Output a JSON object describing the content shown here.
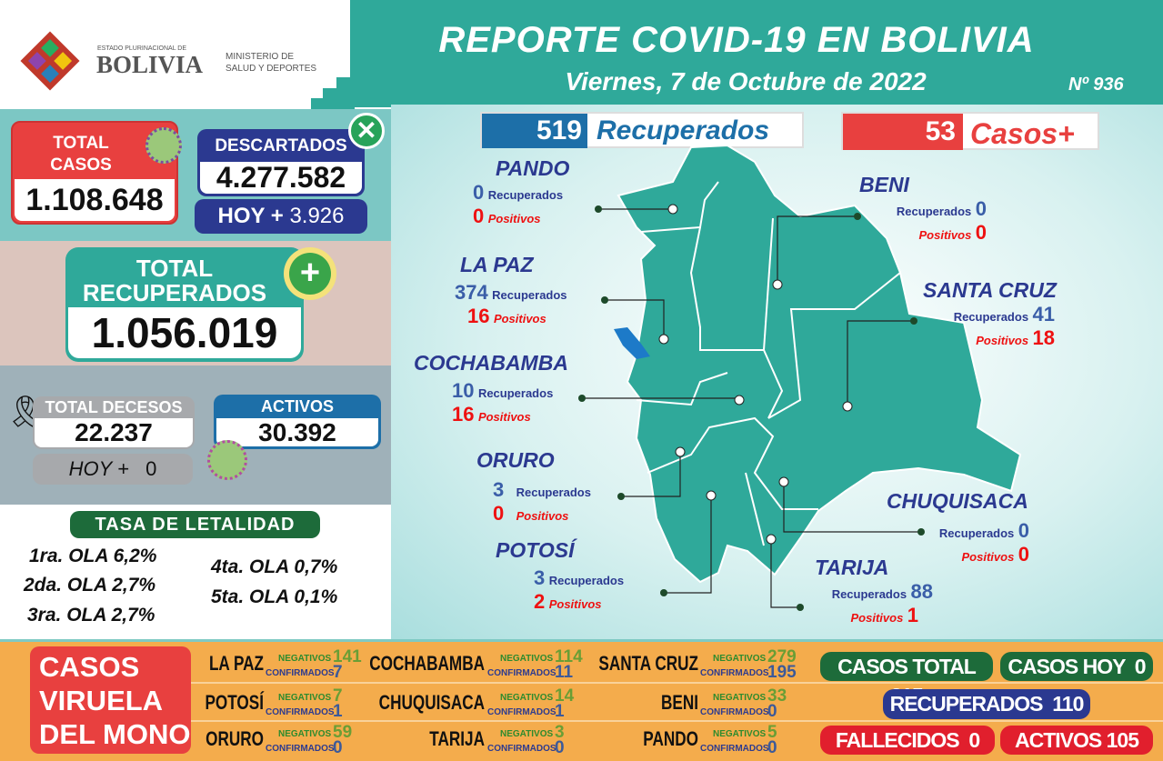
{
  "header": {
    "title": "REPORTE COVID-19 EN BOLIVIA",
    "date": "Viernes, 7 de Octubre de 2022",
    "number": "Nº 936",
    "logo_small": "ESTADO PLURINACIONAL DE",
    "logo_big": "BOLIVIA",
    "ministry_line1": "MINISTERIO DE",
    "ministry_line2": "SALUD Y DEPORTES"
  },
  "colors": {
    "teal": "#2fa99a",
    "red": "#e8403f",
    "navy": "#2b3990",
    "green": "#1d6b3a",
    "orange": "#f4ac4c"
  },
  "totals": {
    "total_casos_label1": "TOTAL",
    "total_casos_label2": "CASOS",
    "total_casos": "1.108.648",
    "descartados_label": "DESCARTADOS",
    "descartados": "4.277.582",
    "descartados_hoy_label": "HOY +",
    "descartados_hoy": "3.926",
    "recuperados_label1": "TOTAL",
    "recuperados_label2": "RECUPERADOS",
    "recuperados": "1.056.019",
    "decesos_label": "TOTAL DECESOS",
    "decesos": "22.237",
    "decesos_hoy_label": "HOY +",
    "decesos_hoy": "0",
    "activos_label": "ACTIVOS",
    "activos": "30.392"
  },
  "letalidad": {
    "title": "TASA DE LETALIDAD",
    "olas": [
      "1ra. OLA 6,2%",
      "2da. OLA 2,7%",
      "3ra. OLA 2,7%",
      "4ta. OLA 0,7%",
      "5ta. OLA 0,1%"
    ]
  },
  "day": {
    "recuperados": "519",
    "recuperados_label": "Recuperados",
    "casos": "53",
    "casos_label": "Casos+"
  },
  "labels": {
    "recuperados": "Recuperados",
    "positivos": "Positivos"
  },
  "regions": [
    {
      "name": "PANDO",
      "recuperados": "0",
      "positivos": "0"
    },
    {
      "name": "BENI",
      "recuperados": "0",
      "positivos": "0"
    },
    {
      "name": "LA PAZ",
      "recuperados": "374",
      "positivos": "16"
    },
    {
      "name": "SANTA CRUZ",
      "recuperados": "41",
      "positivos": "18"
    },
    {
      "name": "COCHABAMBA",
      "recuperados": "10",
      "positivos": "16"
    },
    {
      "name": "ORURO",
      "recuperados": "3",
      "positivos": "0"
    },
    {
      "name": "POTOSÍ",
      "recuperados": "3",
      "positivos": "2"
    },
    {
      "name": "CHUQUISACA",
      "recuperados": "0",
      "positivos": "0"
    },
    {
      "name": "TARIJA",
      "recuperados": "88",
      "positivos": "1"
    }
  ],
  "viruela": {
    "title1": "CASOS",
    "title2": "VIRUELA",
    "title3": "DEL MONO",
    "neg_label": "NEGATIVOS",
    "conf_label": "CONFIRMADOS",
    "rows": [
      {
        "name": "LA PAZ",
        "negativos": "141",
        "confirmados": "7"
      },
      {
        "name": "COCHABAMBA",
        "negativos": "114",
        "confirmados": "11"
      },
      {
        "name": "SANTA CRUZ",
        "negativos": "279",
        "confirmados": "195"
      },
      {
        "name": "POTOSÍ",
        "negativos": "7",
        "confirmados": "1"
      },
      {
        "name": "CHUQUISACA",
        "negativos": "14",
        "confirmados": "1"
      },
      {
        "name": "BENI",
        "negativos": "33",
        "confirmados": "0"
      },
      {
        "name": "ORURO",
        "negativos": "59",
        "confirmados": "0"
      },
      {
        "name": "TARIJA",
        "negativos": "3",
        "confirmados": "0"
      },
      {
        "name": "PANDO",
        "negativos": "5",
        "confirmados": "0"
      }
    ],
    "casos_total": "CASOS TOTAL 215",
    "casos_hoy": "CASOS HOY  0",
    "recuperados": "RECUPERADOS  110",
    "fallecidos": "FALLECIDOS  0",
    "activos": "ACTIVOS 105"
  }
}
